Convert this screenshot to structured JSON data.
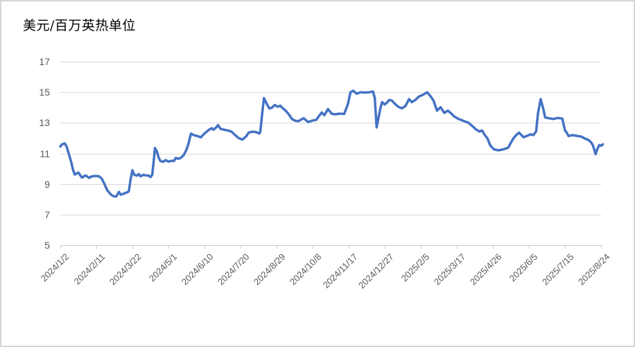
{
  "title": "美元/百万英热单位",
  "colors": {
    "series_line": "#4472C4",
    "gridline": "#D9D9D9",
    "axis_line": "#C9C9C9",
    "tick_label": "#595959",
    "title_text": "#000000",
    "frame_border": "#D6D6D6",
    "background": "#FFFFFF"
  },
  "chart_data": {
    "type": "line",
    "title": "美元/百万英热单位",
    "xlabel": "",
    "ylabel": "美元/百万英热单位",
    "ylim": [
      5,
      17
    ],
    "y_ticks": [
      5,
      7,
      9,
      11,
      13,
      15,
      17
    ],
    "grid": true,
    "legend": "none",
    "x_tick_labels": [
      "2024/1/2",
      "2024/2/11",
      "2024/3/22",
      "2024/5/1",
      "2024/6/10",
      "2024/7/20",
      "2024/8/29",
      "2024/10/8",
      "2024/11/17",
      "2024/12/27",
      "2025/2/5",
      "2025/3/17",
      "2025/4/26",
      "2025/6/5",
      "2025/7/15",
      "2025/8/24"
    ],
    "points": [
      [
        "2024-01-02",
        11.45
      ],
      [
        "2024-01-04",
        11.6
      ],
      [
        "2024-01-07",
        11.65
      ],
      [
        "2024-01-09",
        11.45
      ],
      [
        "2024-01-11",
        11.05
      ],
      [
        "2024-01-14",
        10.45
      ],
      [
        "2024-01-16",
        9.95
      ],
      [
        "2024-01-18",
        9.62
      ],
      [
        "2024-01-22",
        9.75
      ],
      [
        "2024-01-26",
        9.42
      ],
      [
        "2024-01-30",
        9.56
      ],
      [
        "2024-02-03",
        9.4
      ],
      [
        "2024-02-06",
        9.5
      ],
      [
        "2024-02-10",
        9.53
      ],
      [
        "2024-02-14",
        9.5
      ],
      [
        "2024-02-17",
        9.35
      ],
      [
        "2024-02-20",
        9.0
      ],
      [
        "2024-02-23",
        8.6
      ],
      [
        "2024-02-27",
        8.32
      ],
      [
        "2024-03-01",
        8.2
      ],
      [
        "2024-03-04",
        8.18
      ],
      [
        "2024-03-07",
        8.48
      ],
      [
        "2024-03-09",
        8.3
      ],
      [
        "2024-03-12",
        8.36
      ],
      [
        "2024-03-16",
        8.45
      ],
      [
        "2024-03-18",
        8.52
      ],
      [
        "2024-03-20",
        9.3
      ],
      [
        "2024-03-22",
        9.9
      ],
      [
        "2024-03-24",
        9.6
      ],
      [
        "2024-03-27",
        9.55
      ],
      [
        "2024-03-29",
        9.65
      ],
      [
        "2024-03-31",
        9.5
      ],
      [
        "2024-04-03",
        9.6
      ],
      [
        "2024-04-06",
        9.56
      ],
      [
        "2024-04-09",
        9.55
      ],
      [
        "2024-04-11",
        9.45
      ],
      [
        "2024-04-13",
        9.6
      ],
      [
        "2024-04-15",
        10.7
      ],
      [
        "2024-04-16",
        11.35
      ],
      [
        "2024-04-18",
        11.15
      ],
      [
        "2024-04-20",
        10.75
      ],
      [
        "2024-04-22",
        10.5
      ],
      [
        "2024-04-25",
        10.45
      ],
      [
        "2024-04-28",
        10.56
      ],
      [
        "2024-05-01",
        10.46
      ],
      [
        "2024-05-04",
        10.52
      ],
      [
        "2024-05-07",
        10.5
      ],
      [
        "2024-05-09",
        10.7
      ],
      [
        "2024-05-12",
        10.65
      ],
      [
        "2024-05-15",
        10.72
      ],
      [
        "2024-05-18",
        10.9
      ],
      [
        "2024-05-21",
        11.25
      ],
      [
        "2024-05-23",
        11.6
      ],
      [
        "2024-05-26",
        12.3
      ],
      [
        "2024-05-29",
        12.2
      ],
      [
        "2024-06-01",
        12.15
      ],
      [
        "2024-06-04",
        12.1
      ],
      [
        "2024-06-06",
        12.05
      ],
      [
        "2024-06-09",
        12.25
      ],
      [
        "2024-06-12",
        12.4
      ],
      [
        "2024-06-15",
        12.55
      ],
      [
        "2024-06-18",
        12.65
      ],
      [
        "2024-06-20",
        12.55
      ],
      [
        "2024-06-23",
        12.7
      ],
      [
        "2024-06-25",
        12.85
      ],
      [
        "2024-06-28",
        12.6
      ],
      [
        "2024-07-02",
        12.55
      ],
      [
        "2024-07-06",
        12.5
      ],
      [
        "2024-07-10",
        12.42
      ],
      [
        "2024-07-14",
        12.2
      ],
      [
        "2024-07-18",
        12.0
      ],
      [
        "2024-07-22",
        11.9
      ],
      [
        "2024-07-26",
        12.1
      ],
      [
        "2024-07-29",
        12.36
      ],
      [
        "2024-08-02",
        12.42
      ],
      [
        "2024-08-06",
        12.4
      ],
      [
        "2024-08-10",
        12.3
      ],
      [
        "2024-08-11",
        12.45
      ],
      [
        "2024-08-13",
        13.6
      ],
      [
        "2024-08-15",
        14.62
      ],
      [
        "2024-08-18",
        14.25
      ],
      [
        "2024-08-21",
        13.94
      ],
      [
        "2024-08-24",
        14.0
      ],
      [
        "2024-08-27",
        14.17
      ],
      [
        "2024-08-30",
        14.05
      ],
      [
        "2024-09-02",
        14.12
      ],
      [
        "2024-09-05",
        13.95
      ],
      [
        "2024-09-08",
        13.8
      ],
      [
        "2024-09-11",
        13.6
      ],
      [
        "2024-09-15",
        13.26
      ],
      [
        "2024-09-18",
        13.15
      ],
      [
        "2024-09-22",
        13.1
      ],
      [
        "2024-09-25",
        13.2
      ],
      [
        "2024-09-28",
        13.3
      ],
      [
        "2024-10-03",
        13.05
      ],
      [
        "2024-10-08",
        13.15
      ],
      [
        "2024-10-12",
        13.2
      ],
      [
        "2024-10-18",
        13.67
      ],
      [
        "2024-10-21",
        13.5
      ],
      [
        "2024-10-25",
        13.9
      ],
      [
        "2024-10-29",
        13.6
      ],
      [
        "2024-11-02",
        13.56
      ],
      [
        "2024-11-07",
        13.6
      ],
      [
        "2024-11-12",
        13.58
      ],
      [
        "2024-11-16",
        14.2
      ],
      [
        "2024-11-19",
        15.0
      ],
      [
        "2024-11-22",
        15.1
      ],
      [
        "2024-11-26",
        14.9
      ],
      [
        "2024-11-30",
        15.0
      ],
      [
        "2024-12-05",
        14.98
      ],
      [
        "2024-12-10",
        15.0
      ],
      [
        "2024-12-14",
        15.05
      ],
      [
        "2024-12-16",
        14.6
      ],
      [
        "2024-12-18",
        12.7
      ],
      [
        "2024-12-20",
        13.3
      ],
      [
        "2024-12-22",
        13.9
      ],
      [
        "2024-12-24",
        14.35
      ],
      [
        "2024-12-27",
        14.2
      ],
      [
        "2024-12-30",
        14.35
      ],
      [
        "2025-01-01",
        14.5
      ],
      [
        "2025-01-04",
        14.45
      ],
      [
        "2025-01-08",
        14.2
      ],
      [
        "2025-01-11",
        14.05
      ],
      [
        "2025-01-15",
        13.95
      ],
      [
        "2025-01-19",
        14.1
      ],
      [
        "2025-01-23",
        14.55
      ],
      [
        "2025-01-26",
        14.35
      ],
      [
        "2025-01-30",
        14.5
      ],
      [
        "2025-02-03",
        14.72
      ],
      [
        "2025-02-08",
        14.85
      ],
      [
        "2025-02-12",
        15.0
      ],
      [
        "2025-02-15",
        14.8
      ],
      [
        "2025-02-19",
        14.47
      ],
      [
        "2025-02-23",
        13.8
      ],
      [
        "2025-02-27",
        14.02
      ],
      [
        "2025-03-03",
        13.65
      ],
      [
        "2025-03-07",
        13.8
      ],
      [
        "2025-03-11",
        13.6
      ],
      [
        "2025-03-14",
        13.42
      ],
      [
        "2025-03-19",
        13.25
      ],
      [
        "2025-03-25",
        13.11
      ],
      [
        "2025-03-30",
        13.0
      ],
      [
        "2025-04-04",
        12.75
      ],
      [
        "2025-04-07",
        12.58
      ],
      [
        "2025-04-11",
        12.43
      ],
      [
        "2025-04-14",
        12.5
      ],
      [
        "2025-04-17",
        12.21
      ],
      [
        "2025-04-20",
        11.98
      ],
      [
        "2025-04-23",
        11.53
      ],
      [
        "2025-04-27",
        11.27
      ],
      [
        "2025-05-02",
        11.2
      ],
      [
        "2025-05-08",
        11.27
      ],
      [
        "2025-05-13",
        11.38
      ],
      [
        "2025-05-16",
        11.7
      ],
      [
        "2025-05-19",
        12.0
      ],
      [
        "2025-05-22",
        12.21
      ],
      [
        "2025-05-25",
        12.36
      ],
      [
        "2025-05-30",
        12.06
      ],
      [
        "2025-06-03",
        12.15
      ],
      [
        "2025-06-07",
        12.25
      ],
      [
        "2025-06-10",
        12.2
      ],
      [
        "2025-06-13",
        12.45
      ],
      [
        "2025-06-15",
        13.6
      ],
      [
        "2025-06-18",
        14.55
      ],
      [
        "2025-06-21",
        13.9
      ],
      [
        "2025-06-23",
        13.35
      ],
      [
        "2025-06-27",
        13.3
      ],
      [
        "2025-07-02",
        13.25
      ],
      [
        "2025-07-07",
        13.32
      ],
      [
        "2025-07-12",
        13.28
      ],
      [
        "2025-07-15",
        12.5
      ],
      [
        "2025-07-17",
        12.36
      ],
      [
        "2025-07-19",
        12.13
      ],
      [
        "2025-07-23",
        12.2
      ],
      [
        "2025-07-28",
        12.15
      ],
      [
        "2025-08-02",
        12.1
      ],
      [
        "2025-08-06",
        11.98
      ],
      [
        "2025-08-10",
        11.88
      ],
      [
        "2025-08-13",
        11.72
      ],
      [
        "2025-08-15",
        11.53
      ],
      [
        "2025-08-18",
        10.95
      ],
      [
        "2025-08-20",
        11.3
      ],
      [
        "2025-08-22",
        11.55
      ],
      [
        "2025-08-24",
        11.5
      ],
      [
        "2025-08-26",
        11.6
      ]
    ]
  }
}
